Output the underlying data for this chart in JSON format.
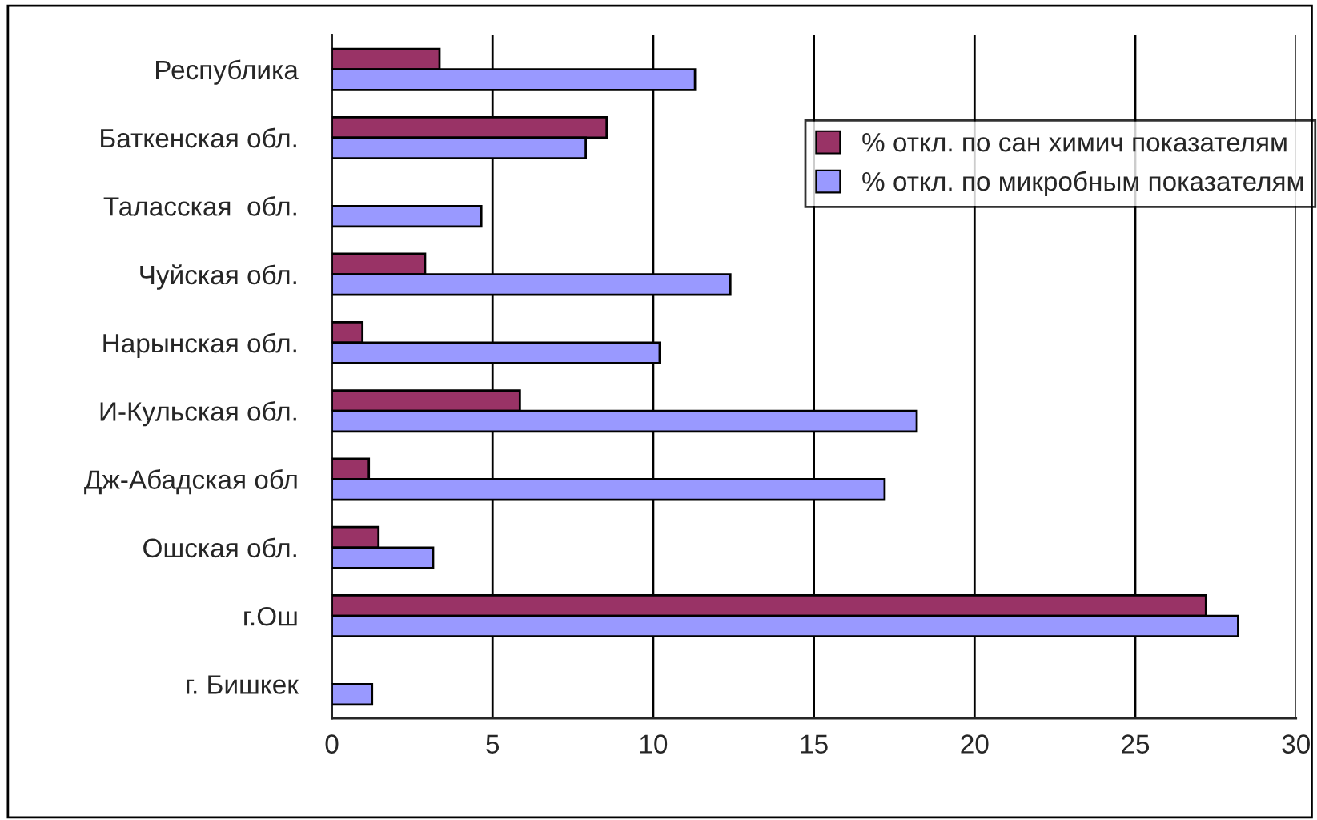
{
  "chart_data": {
    "type": "bar",
    "orientation": "horizontal",
    "categories": [
      "Республика",
      "Баткенская обл.",
      "Таласская  обл.",
      "Чуйская обл.",
      "Нарынская обл.",
      "И-Кульская обл.",
      "Дж-Абадская обл",
      "Ошская обл.",
      "г.Ош",
      "г. Бишкек"
    ],
    "series": [
      {
        "name": "% откл. по сан химич показателям",
        "color": "#993366",
        "values": [
          3.35,
          8.55,
          null,
          2.9,
          0.95,
          5.85,
          1.15,
          1.45,
          27.2,
          null
        ]
      },
      {
        "name": "% откл. по микробным показателям",
        "color": "#9999ff",
        "values": [
          11.3,
          7.9,
          4.65,
          12.4,
          10.2,
          18.2,
          17.2,
          3.15,
          28.2,
          1.25
        ]
      }
    ],
    "xlim": [
      0,
      30
    ],
    "xticks": [
      0,
      5,
      10,
      15,
      20,
      25,
      30
    ],
    "grid": "x",
    "legend": "right"
  }
}
